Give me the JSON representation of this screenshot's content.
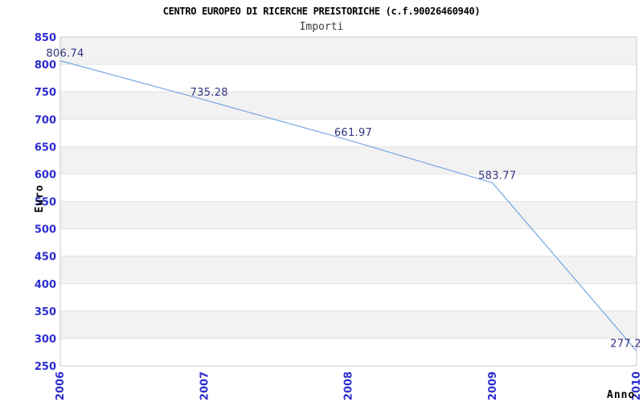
{
  "header": {
    "title": "CENTRO EUROPEO DI RICERCHE PREISTORICHE (c.f.90026460940)",
    "subtitle": "Importi"
  },
  "chart_data": {
    "type": "line",
    "title": "CENTRO EUROPEO DI RICERCHE PREISTORICHE (c.f.90026460940)",
    "subtitle": "Importi",
    "xlabel": "Anno",
    "ylabel": "Euro",
    "categories": [
      "2006",
      "2007",
      "2008",
      "2009",
      "2010"
    ],
    "values": [
      806.74,
      735.28,
      661.97,
      583.77,
      277.2
    ],
    "point_labels": [
      "806.74",
      "735.28",
      "661.97",
      "583.77",
      "277.2"
    ],
    "ylim": [
      250,
      850
    ],
    "ytick_step": 50,
    "ytick_labels": [
      "850",
      "800",
      "750",
      "700",
      "650",
      "600",
      "550",
      "500",
      "450",
      "400",
      "350",
      "300",
      "250"
    ],
    "grid": "horizontal-alternating-bands",
    "legend": "none",
    "colors": {
      "line": "#74a7e0",
      "tick_label": "#2d2dd0",
      "point_label": "#333380",
      "band_fill": "#f2f2f2",
      "band_alt_fill": "#ffffff",
      "gridline": "#e2e2e2",
      "plot_border": "#c8c8c8",
      "title_text": "#000000",
      "axis_title_text": "#000000",
      "background": "#ffffff"
    }
  }
}
